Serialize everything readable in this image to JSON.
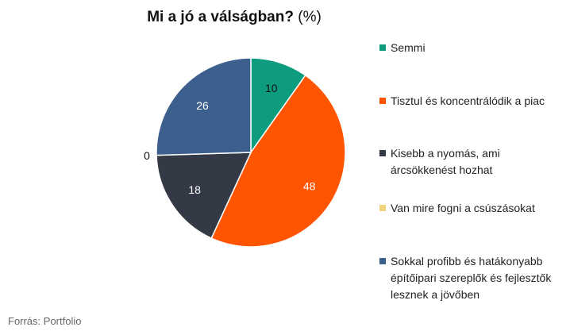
{
  "chart_data": {
    "type": "pie",
    "title": "Mi a jó a válságban?",
    "unit": "(%)",
    "slices": [
      {
        "label": "Semmi",
        "value": 10,
        "color": "#0e9c7e"
      },
      {
        "label": "Tisztul és koncentrálódik a piac",
        "value": 48,
        "color": "#ff5500"
      },
      {
        "label": "Kisebb a nyomás, ami árcsökkenést hozhat",
        "value": 18,
        "color": "#343a45"
      },
      {
        "label": "Van mire fogni a csúszásokat",
        "value": 0,
        "color": "#f2d27a"
      },
      {
        "label": "Sokkal profibb és hatákonyabb építőipari szereplők és fejlesztők lesznek a jövőben",
        "value": 26,
        "color": "#3c5f8d"
      }
    ],
    "legend_position": "right"
  },
  "source": "Forrás: Portfolio"
}
